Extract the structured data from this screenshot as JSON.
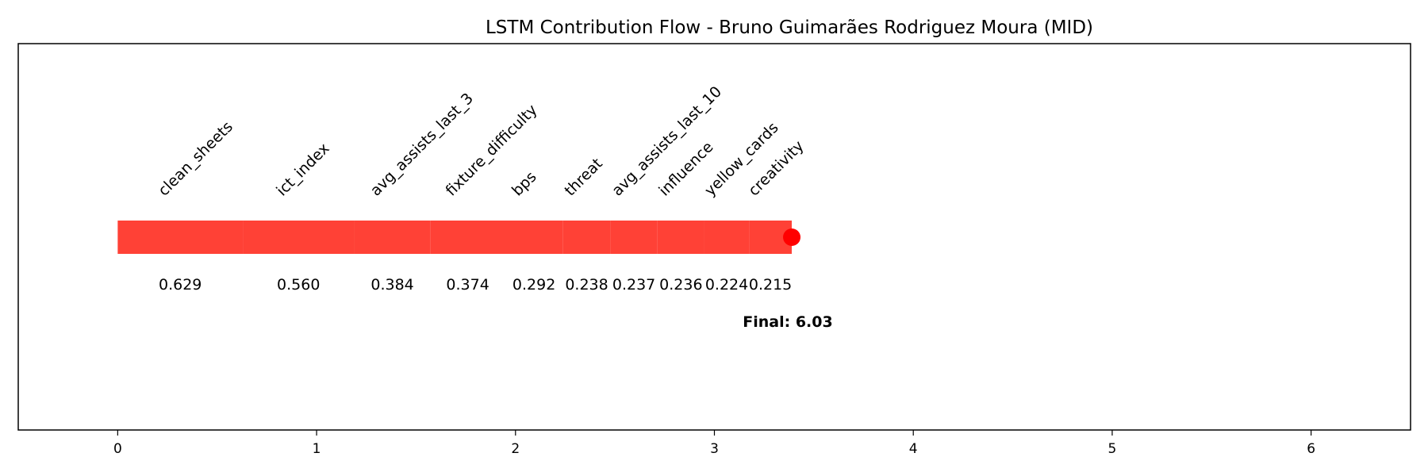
{
  "chart_data": {
    "type": "bar",
    "title": "LSTM Contribution Flow - Bruno Guimarães Rodriguez Moura (MID)",
    "xlabel": "",
    "ylabel": "",
    "xlim": [
      -0.5,
      6.5
    ],
    "xticks": [
      "0",
      "1",
      "2",
      "3",
      "4",
      "5",
      "6"
    ],
    "grid": false,
    "bar_color": "#ff4136",
    "marker_color": "#ff0000",
    "segments": [
      {
        "feature": "clean_sheets",
        "value": 0.629,
        "value_label": "0.629"
      },
      {
        "feature": "ict_index",
        "value": 0.56,
        "value_label": "0.560"
      },
      {
        "feature": "avg_assists_last_3",
        "value": 0.384,
        "value_label": "0.384"
      },
      {
        "feature": "fixture_difficulty",
        "value": 0.374,
        "value_label": "0.374"
      },
      {
        "feature": "bps",
        "value": 0.292,
        "value_label": "0.292"
      },
      {
        "feature": "threat",
        "value": 0.238,
        "value_label": "0.238"
      },
      {
        "feature": "avg_assists_last_10",
        "value": 0.237,
        "value_label": "0.237"
      },
      {
        "feature": "influence",
        "value": 0.236,
        "value_label": "0.236"
      },
      {
        "feature": "yellow_cards",
        "value": 0.224,
        "value_label": "0.224"
      },
      {
        "feature": "creativity",
        "value": 0.215,
        "value_label": "0.215"
      }
    ],
    "final_label": "Final: 6.03"
  }
}
